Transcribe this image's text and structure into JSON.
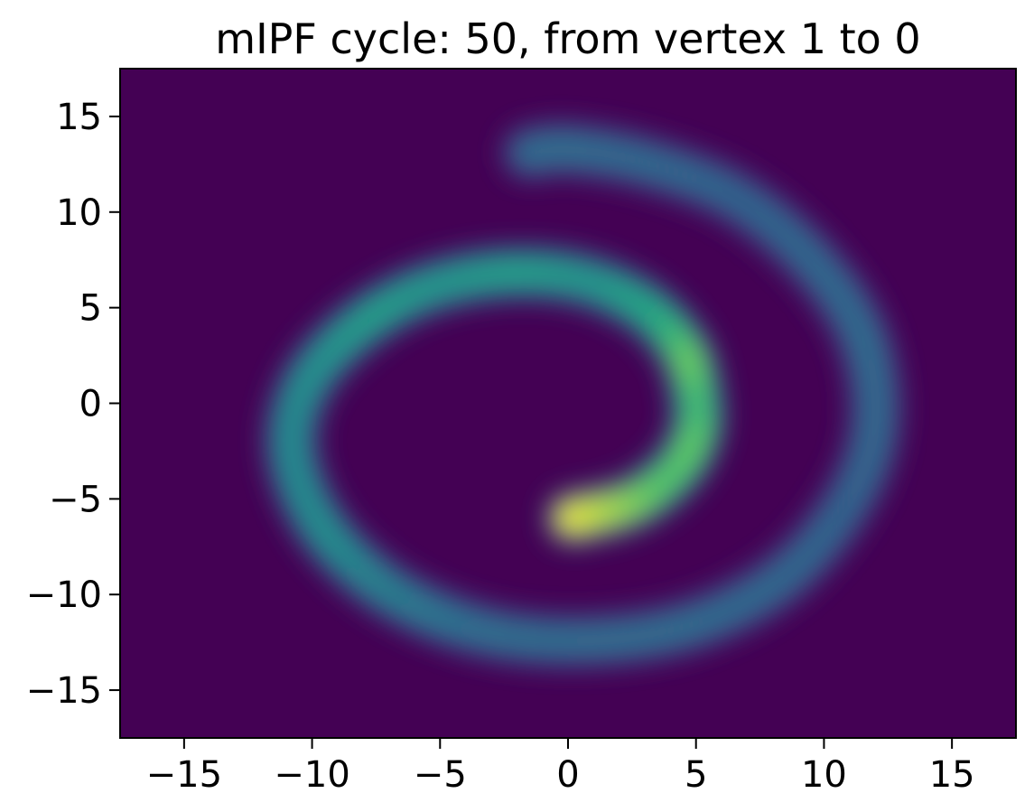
{
  "chart_data": {
    "type": "heatmap",
    "title": "mIPF cycle: 50, from vertex 1 to 0",
    "xlabel": "",
    "ylabel": "",
    "xlim": [
      -17.5,
      17.5
    ],
    "ylim": [
      -17.5,
      17.5
    ],
    "x_ticks": [
      -15,
      -10,
      -5,
      0,
      5,
      10,
      15
    ],
    "y_ticks": [
      -15,
      -10,
      -5,
      0,
      5,
      10,
      15
    ],
    "x_tick_labels": [
      "−15",
      "−10",
      "−5",
      "0",
      "5",
      "10",
      "15"
    ],
    "y_tick_labels": [
      "−15",
      "−10",
      "−5",
      "0",
      "5",
      "10",
      "15"
    ],
    "grid": false,
    "colormap": "viridis",
    "colors": {
      "background": "#440154",
      "low": "#31688e",
      "mid": "#21918c",
      "high": "#35b779",
      "peak": "#fde725"
    },
    "density_path": [
      {
        "x": 0.2,
        "y": -6.0,
        "v": 1.0
      },
      {
        "x": 2.5,
        "y": -5.2,
        "v": 0.92
      },
      {
        "x": 4.2,
        "y": -3.5,
        "v": 0.85
      },
      {
        "x": 5.0,
        "y": -1.5,
        "v": 0.88
      },
      {
        "x": 5.0,
        "y": 0.5,
        "v": 0.8
      },
      {
        "x": 4.5,
        "y": 2.8,
        "v": 0.9
      },
      {
        "x": 3.0,
        "y": 5.0,
        "v": 0.72
      },
      {
        "x": 0.5,
        "y": 6.5,
        "v": 0.62
      },
      {
        "x": -2.5,
        "y": 6.8,
        "v": 0.66
      },
      {
        "x": -5.5,
        "y": 6.0,
        "v": 0.62
      },
      {
        "x": -8.0,
        "y": 4.2,
        "v": 0.66
      },
      {
        "x": -10.0,
        "y": 1.5,
        "v": 0.6
      },
      {
        "x": -10.8,
        "y": -1.5,
        "v": 0.56
      },
      {
        "x": -10.4,
        "y": -4.5,
        "v": 0.56
      },
      {
        "x": -9.0,
        "y": -7.5,
        "v": 0.58
      },
      {
        "x": -6.5,
        "y": -10.2,
        "v": 0.5
      },
      {
        "x": -3.0,
        "y": -12.0,
        "v": 0.42
      },
      {
        "x": 1.0,
        "y": -12.4,
        "v": 0.4
      },
      {
        "x": 5.0,
        "y": -11.5,
        "v": 0.4
      },
      {
        "x": 8.5,
        "y": -9.0,
        "v": 0.38
      },
      {
        "x": 11.0,
        "y": -5.0,
        "v": 0.36
      },
      {
        "x": 12.0,
        "y": -1.0,
        "v": 0.38
      },
      {
        "x": 11.5,
        "y": 3.5,
        "v": 0.4
      },
      {
        "x": 9.5,
        "y": 7.5,
        "v": 0.38
      },
      {
        "x": 6.5,
        "y": 10.8,
        "v": 0.36
      },
      {
        "x": 3.0,
        "y": 12.6,
        "v": 0.38
      },
      {
        "x": 0.0,
        "y": 13.3,
        "v": 0.4
      },
      {
        "x": -1.5,
        "y": 13.1,
        "v": 0.4
      }
    ]
  }
}
